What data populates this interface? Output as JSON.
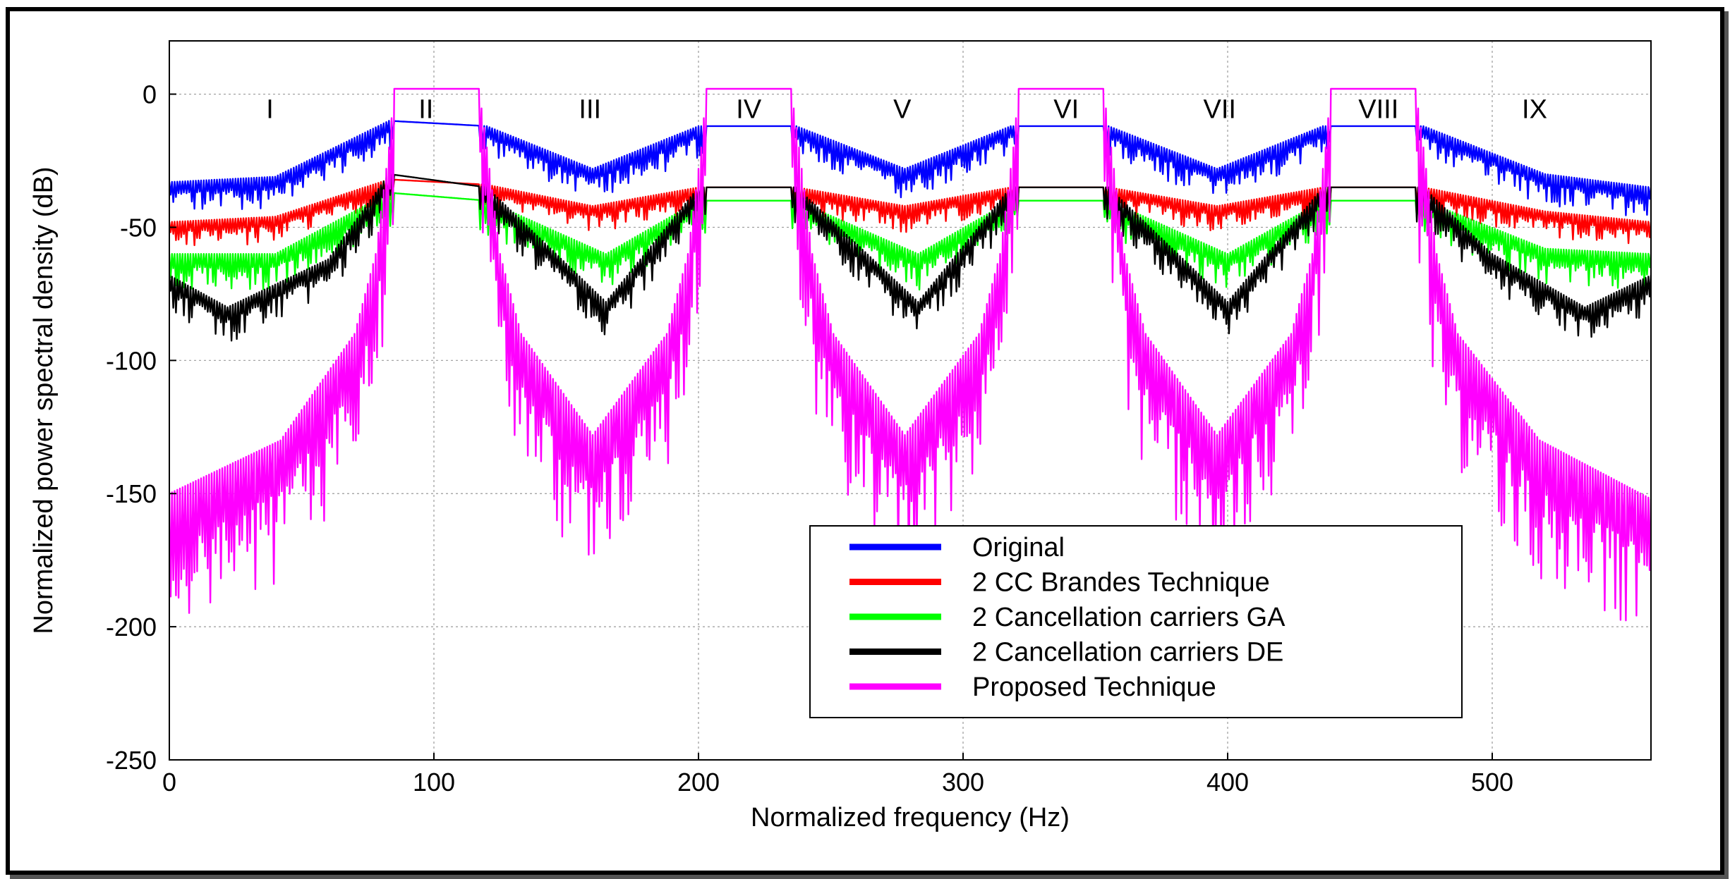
{
  "chart_data": {
    "type": "line",
    "xlabel": "Normalized frequency (Hz)",
    "ylabel": "Normalized power spectral density (dB)",
    "xlim": [
      0,
      560
    ],
    "ylim": [
      -250,
      20
    ],
    "xticks": [
      0,
      100,
      200,
      300,
      400,
      500
    ],
    "yticks": [
      0,
      -50,
      -100,
      -150,
      -200,
      -250
    ],
    "grid": true,
    "legend_position": "bottom-right",
    "regions": [
      {
        "label": "I",
        "x": 38
      },
      {
        "label": "II",
        "x": 97
      },
      {
        "label": "III",
        "x": 159
      },
      {
        "label": "IV",
        "x": 219
      },
      {
        "label": "V",
        "x": 277
      },
      {
        "label": "VI",
        "x": 339
      },
      {
        "label": "VII",
        "x": 397
      },
      {
        "label": "VIII",
        "x": 457
      },
      {
        "label": "IX",
        "x": 516
      }
    ],
    "passbands": [
      [
        85,
        117
      ],
      [
        203,
        235
      ],
      [
        321,
        353
      ],
      [
        439,
        471
      ]
    ],
    "series": [
      {
        "name": "Original",
        "color": "#0000ff",
        "points": [
          [
            0,
            -33
          ],
          [
            40,
            -31
          ],
          [
            83,
            -10
          ],
          [
            120,
            -12
          ],
          [
            160,
            -28
          ],
          [
            200,
            -12
          ],
          [
            237,
            -12
          ],
          [
            278,
            -28
          ],
          [
            318,
            -12
          ],
          [
            355,
            -12
          ],
          [
            396,
            -28
          ],
          [
            436,
            -12
          ],
          [
            474,
            -12
          ],
          [
            520,
            -30
          ],
          [
            560,
            -35
          ]
        ],
        "dip": 12
      },
      {
        "name": "2 CC Brandes Technique",
        "color": "#ff0000",
        "points": [
          [
            0,
            -48
          ],
          [
            40,
            -46
          ],
          [
            83,
            -32
          ],
          [
            120,
            -34
          ],
          [
            160,
            -42
          ],
          [
            200,
            -35
          ],
          [
            237,
            -35
          ],
          [
            278,
            -42
          ],
          [
            318,
            -35
          ],
          [
            355,
            -35
          ],
          [
            396,
            -42
          ],
          [
            436,
            -35
          ],
          [
            474,
            -35
          ],
          [
            520,
            -44
          ],
          [
            560,
            -48
          ]
        ],
        "dip": 10
      },
      {
        "name": "2 Cancellation carriers GA",
        "color": "#00ff00",
        "points": [
          [
            0,
            -60
          ],
          [
            40,
            -60
          ],
          [
            83,
            -37
          ],
          [
            120,
            -40
          ],
          [
            165,
            -60
          ],
          [
            200,
            -40
          ],
          [
            237,
            -40
          ],
          [
            283,
            -60
          ],
          [
            318,
            -40
          ],
          [
            355,
            -40
          ],
          [
            400,
            -60
          ],
          [
            436,
            -40
          ],
          [
            474,
            -40
          ],
          [
            520,
            -58
          ],
          [
            560,
            -60
          ]
        ],
        "dip": 14
      },
      {
        "name": "2 Cancellation carriers DE",
        "color": "#000000",
        "points": [
          [
            0,
            -68
          ],
          [
            22,
            -80
          ],
          [
            60,
            -62
          ],
          [
            83,
            -30
          ],
          [
            120,
            -35
          ],
          [
            165,
            -78
          ],
          [
            200,
            -35
          ],
          [
            237,
            -35
          ],
          [
            283,
            -78
          ],
          [
            318,
            -35
          ],
          [
            355,
            -35
          ],
          [
            400,
            -78
          ],
          [
            436,
            -35
          ],
          [
            474,
            -35
          ],
          [
            500,
            -60
          ],
          [
            535,
            -80
          ],
          [
            560,
            -68
          ]
        ],
        "dip": 14
      },
      {
        "name": "Proposed Technique",
        "color": "#ff00ff",
        "points": [
          [
            0,
            -150
          ],
          [
            42,
            -130
          ],
          [
            70,
            -90
          ],
          [
            78,
            -60
          ],
          [
            83,
            -20
          ],
          [
            85,
            2
          ],
          [
            117,
            2
          ],
          [
            120,
            -20
          ],
          [
            125,
            -60
          ],
          [
            133,
            -90
          ],
          [
            160,
            -128
          ],
          [
            188,
            -90
          ],
          [
            196,
            -60
          ],
          [
            201,
            -20
          ],
          [
            203,
            2
          ],
          [
            235,
            2
          ],
          [
            238,
            -20
          ],
          [
            243,
            -60
          ],
          [
            251,
            -90
          ],
          [
            278,
            -128
          ],
          [
            306,
            -90
          ],
          [
            314,
            -60
          ],
          [
            319,
            -20
          ],
          [
            321,
            2
          ],
          [
            353,
            2
          ],
          [
            356,
            -20
          ],
          [
            361,
            -60
          ],
          [
            369,
            -90
          ],
          [
            396,
            -128
          ],
          [
            424,
            -90
          ],
          [
            432,
            -60
          ],
          [
            437,
            -20
          ],
          [
            439,
            2
          ],
          [
            471,
            2
          ],
          [
            474,
            -20
          ],
          [
            479,
            -60
          ],
          [
            487,
            -90
          ],
          [
            518,
            -130
          ],
          [
            560,
            -152
          ]
        ],
        "dip": 55
      }
    ]
  }
}
